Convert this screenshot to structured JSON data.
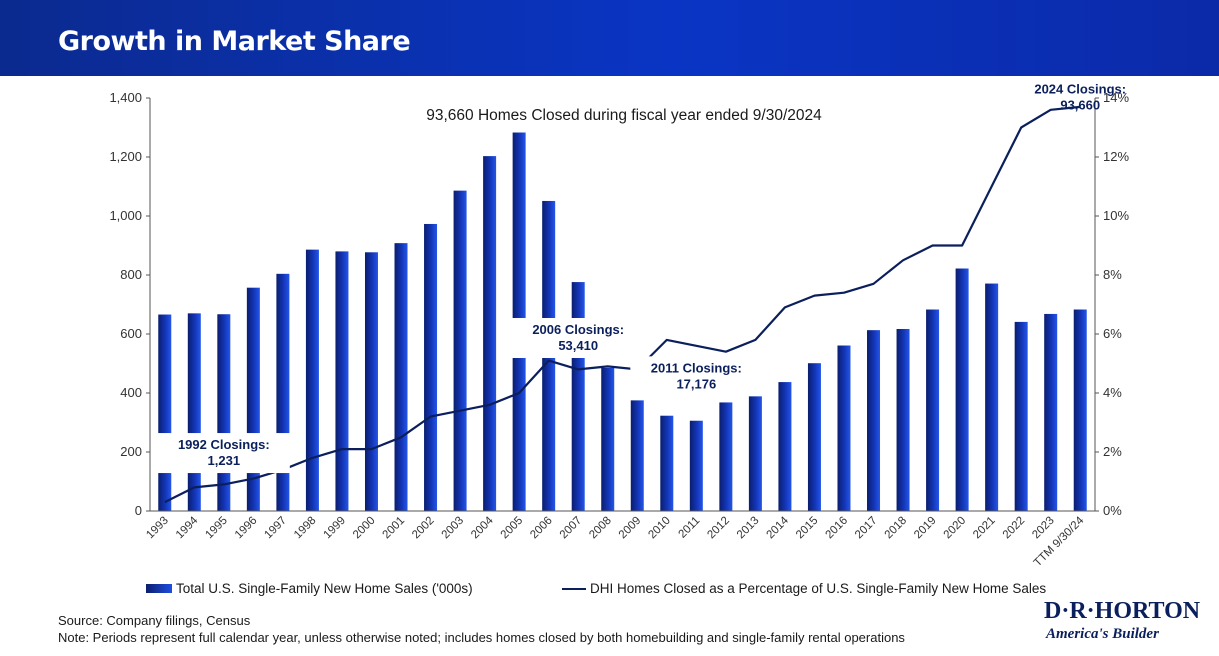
{
  "header": {
    "title": "Growth in Market Share"
  },
  "chart_data": {
    "type": "bar",
    "title": "93,660 Homes Closed during fiscal year ended 9/30/2024",
    "categories": [
      "1993",
      "1994",
      "1995",
      "1996",
      "1997",
      "1998",
      "1999",
      "2000",
      "2001",
      "2002",
      "2003",
      "2004",
      "2005",
      "2006",
      "2007",
      "2008",
      "2009",
      "2010",
      "2011",
      "2012",
      "2013",
      "2014",
      "2015",
      "2016",
      "2017",
      "2018",
      "2019",
      "2020",
      "2021",
      "2022",
      "2023",
      "TTM 9/30/24"
    ],
    "series": [
      {
        "name": "Total U.S. Single-Family New Home Sales ('000s)",
        "type": "bar",
        "axis": "left",
        "values": [
          666,
          670,
          667,
          757,
          804,
          886,
          880,
          877,
          908,
          973,
          1086,
          1203,
          1283,
          1051,
          776,
          485,
          375,
          323,
          306,
          368,
          429,
          437,
          501,
          561,
          613,
          617,
          683,
          822,
          771,
          641,
          668,
          683
        ]
      },
      {
        "name": "DHI Homes Closed as a Percentage of U.S. Single-Family New Home Sales",
        "type": "line",
        "axis": "right",
        "values": [
          0.3,
          0.8,
          0.9,
          1.1,
          1.4,
          1.8,
          2.1,
          2.1,
          2.5,
          3.2,
          3.4,
          3.6,
          4.0,
          5.1,
          4.8,
          4.9,
          4.8,
          5.8,
          5.6,
          5.4,
          5.8,
          6.9,
          7.3,
          7.4,
          7.7,
          8.5,
          9.0,
          9.0,
          11.0,
          13.0,
          13.6,
          13.7
        ]
      }
    ],
    "yLeft": {
      "min": 0,
      "max": 1400,
      "ticks": [
        0,
        200,
        400,
        600,
        800,
        1000,
        1200,
        1400
      ],
      "tick_labels": [
        "0",
        "200",
        "400",
        "600",
        "800",
        "1,000",
        "1,200",
        "1,400"
      ]
    },
    "yRight": {
      "min": 0,
      "max": 14,
      "ticks": [
        0,
        2,
        4,
        6,
        8,
        10,
        12,
        14
      ],
      "tick_labels": [
        "0%",
        "2%",
        "4%",
        "6%",
        "8%",
        "10%",
        "12%",
        "14%"
      ]
    },
    "annotations": [
      {
        "category": "1995",
        "value_axis": "left",
        "value": 210,
        "line1": "1992 Closings:",
        "line2": "1,231"
      },
      {
        "category": "2007",
        "value_axis": "left",
        "value": 600,
        "line1": "2006 Closings:",
        "line2": "53,410"
      },
      {
        "category": "2011",
        "value_axis": "left",
        "value": 470,
        "line1": "2011 Closings:",
        "line2": "17,176"
      },
      {
        "category": "TTM 9/30/24",
        "value_axis": "left",
        "value": 1415,
        "line1": "2024 Closings:",
        "line2": "93,660"
      }
    ],
    "legend": [
      {
        "label": "Total U.S. Single-Family New Home Sales ('000s)",
        "marker": "bar"
      },
      {
        "label": "DHI Homes Closed as a Percentage of U.S. Single-Family New Home Sales",
        "marker": "line"
      }
    ],
    "colors": {
      "bar_dark": "#0a1e6e",
      "bar_light": "#1f4fe0",
      "line": "#0b1f5c"
    }
  },
  "footer": {
    "source": "Source: Company filings, Census",
    "note": "Note: Periods represent full calendar year, unless otherwise noted; includes homes closed by both homebuilding and single-family rental operations"
  },
  "logo": {
    "name": "D·R·HORTON",
    "tagline": "America's Builder"
  }
}
